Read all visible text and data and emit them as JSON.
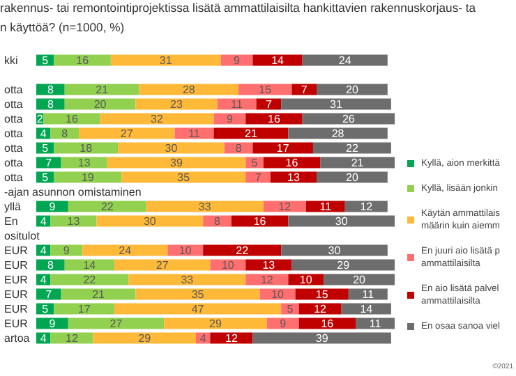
{
  "chart_data": {
    "type": "bar",
    "orientation": "horizontal",
    "stacked": true,
    "data_labels": true,
    "legend": "right",
    "title": "rakennus- tai remontointiprojektissa lisätä ammattilaisilta hankittavien rakennuskorjaus- ta\nn käyttöä? (n=1000, %)",
    "annotations": [
      "©2021"
    ],
    "categories": [
      "kki",
      null,
      "otta",
      "otta",
      "otta",
      "otta",
      "otta",
      "otta",
      "otta",
      "-ajan asunnon omistaminen",
      "yllä",
      "En",
      "ositulot",
      "EUR",
      "EUR",
      "EUR",
      "EUR",
      "EUR",
      "EUR",
      "artoa"
    ],
    "series": [
      {
        "name": "Kyllä, aion merkittä",
        "color": "#00a651",
        "values": [
          5,
          null,
          8,
          8,
          2,
          4,
          5,
          7,
          5,
          null,
          9,
          4,
          null,
          4,
          8,
          4,
          7,
          5,
          9,
          4
        ]
      },
      {
        "name": "Kyllä, lisään jonkin",
        "color": "#92d050",
        "values": [
          16,
          null,
          21,
          20,
          16,
          8,
          18,
          13,
          19,
          null,
          22,
          13,
          null,
          9,
          14,
          22,
          21,
          17,
          27,
          12
        ]
      },
      {
        "name": "Käytän ammattilais\nmäärin kuin aiemm",
        "color": "#ffb938",
        "values": [
          31,
          null,
          28,
          23,
          32,
          27,
          30,
          39,
          35,
          null,
          33,
          30,
          null,
          24,
          27,
          33,
          35,
          47,
          29,
          29
        ]
      },
      {
        "name": "En juuri aio lisätä p\nammattilaisilta",
        "color": "#ff6f6f",
        "values": [
          9,
          null,
          15,
          11,
          9,
          11,
          8,
          5,
          7,
          null,
          12,
          8,
          null,
          10,
          10,
          12,
          10,
          5,
          9,
          4
        ]
      },
      {
        "name": "En aio lisätä palvel\nammattilaisilta",
        "color": "#c00000",
        "values": [
          14,
          null,
          7,
          7,
          16,
          21,
          17,
          16,
          13,
          null,
          11,
          16,
          null,
          22,
          13,
          10,
          15,
          12,
          16,
          12
        ]
      },
      {
        "name": "En osaa sanoa viel",
        "color": "#6d6d6d",
        "values": [
          24,
          null,
          20,
          31,
          26,
          28,
          22,
          21,
          20,
          null,
          12,
          30,
          null,
          30,
          29,
          20,
          11,
          14,
          11,
          39
        ]
      }
    ]
  }
}
